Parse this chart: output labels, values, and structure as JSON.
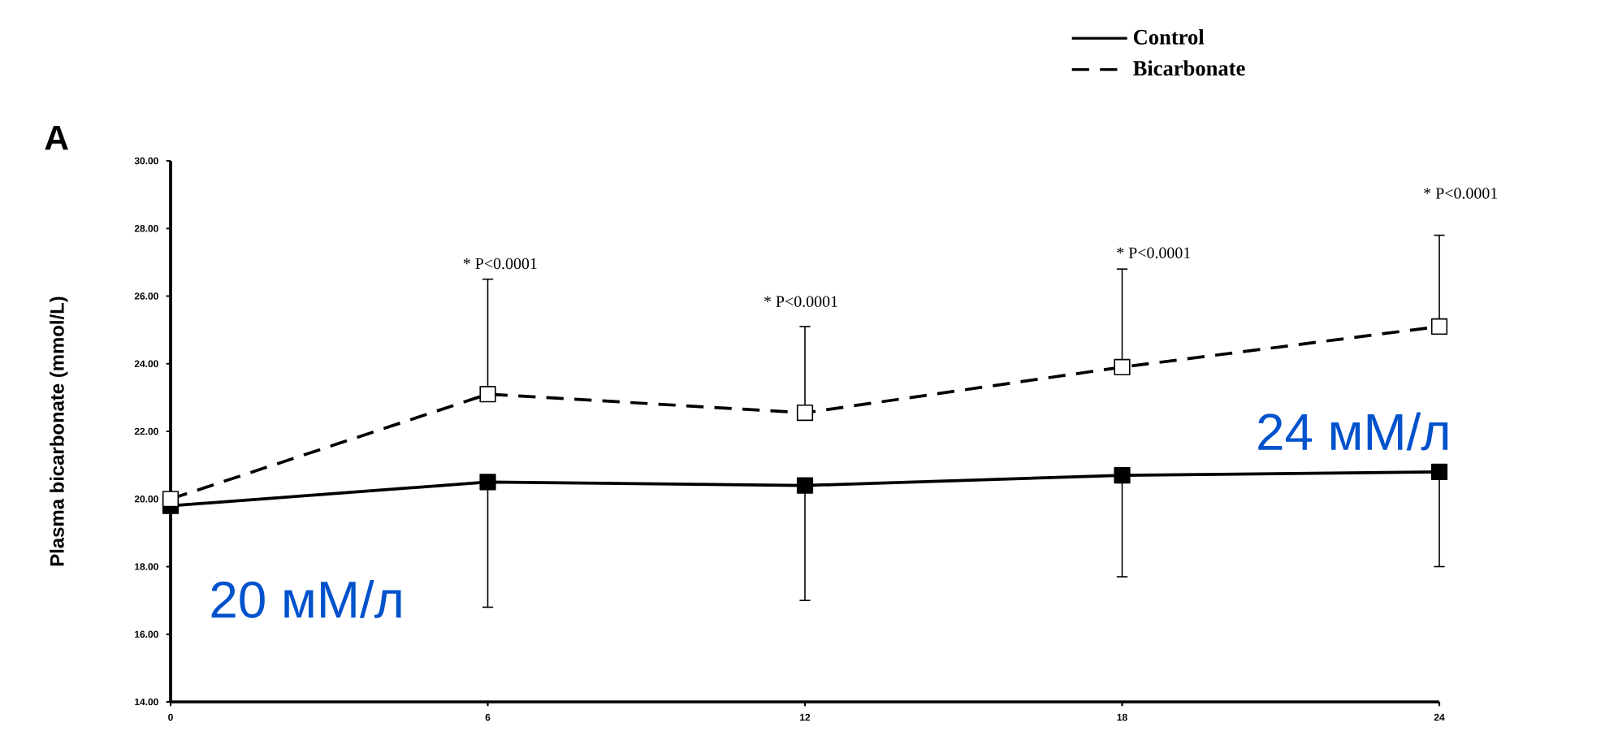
{
  "chart_data": {
    "type": "line",
    "ylabel": "Plasma bicarbonate (mmol/L)",
    "x": [
      0,
      6,
      12,
      18,
      24
    ],
    "xlim": [
      0,
      24
    ],
    "xticks": [
      0,
      6,
      12,
      18,
      24
    ],
    "ylim": [
      14,
      30
    ],
    "yticks": [
      {
        "value": 14,
        "label": "14.00"
      },
      {
        "value": 16,
        "label": "16.00"
      },
      {
        "value": 18,
        "label": "18.00"
      },
      {
        "value": 20,
        "label": "20.00"
      },
      {
        "value": 22,
        "label": "22.00"
      },
      {
        "value": 24,
        "label": "24.00"
      },
      {
        "value": 26,
        "label": "26.00"
      },
      {
        "value": 28,
        "label": "28.00"
      },
      {
        "value": 30,
        "label": "30.00"
      }
    ],
    "series": [
      {
        "name": "Bicarbonate",
        "color": "#000000",
        "line_style": "dashed",
        "marker": "square",
        "values": [
          20.0,
          23.1,
          22.55,
          23.9,
          25.1
        ],
        "errors": [
          null,
          [
            23.1,
            26.5
          ],
          [
            22.55,
            25.1
          ],
          [
            23.9,
            26.8
          ],
          [
            25.1,
            27.8
          ]
        ]
      },
      {
        "name": "Control",
        "color": "#000000",
        "line_style": "solid",
        "marker": "square",
        "values": [
          19.8,
          20.5,
          20.4,
          20.7,
          20.8
        ],
        "errors": [
          null,
          [
            16.8,
            20.5
          ],
          [
            17.0,
            20.4
          ],
          [
            17.7,
            20.7
          ],
          [
            18.0,
            20.8
          ]
        ]
      }
    ],
    "legend": "top right",
    "grid": false,
    "annotations": [
      "A",
      "* P<0.0001",
      "* P<0.0001",
      "* P<0.0001",
      "* P<0.0001",
      "20 мМ/л",
      "24 мМ/л"
    ]
  }
}
